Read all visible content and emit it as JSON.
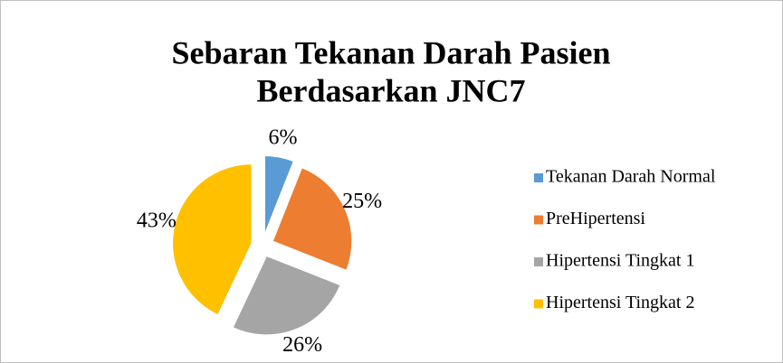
{
  "chart_data": {
    "type": "pie",
    "title": [
      "Sebaran Tekanan Darah Pasien",
      "Berdasarkan JNC7"
    ],
    "categories": [
      "Tekanan Darah Normal",
      "PreHipertensi",
      "Hipertensi Tingkat 1",
      "Hipertensi Tingkat 2"
    ],
    "values": [
      6,
      25,
      26,
      43
    ],
    "value_labels": [
      "6%",
      "25%",
      "26%",
      "43%"
    ],
    "colors": [
      "#5b9bd5",
      "#ed7d31",
      "#a5a5a5",
      "#ffc000"
    ],
    "legend": "right"
  }
}
